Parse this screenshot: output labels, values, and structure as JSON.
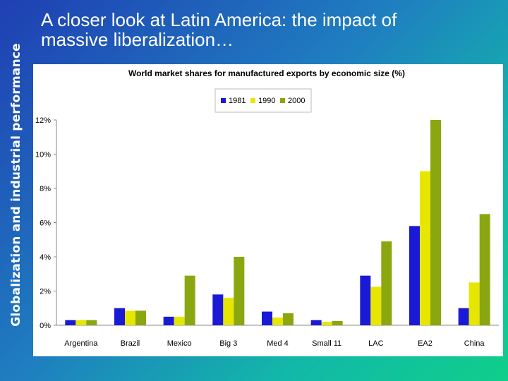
{
  "slide": {
    "side_title": "Globalization and industrial performance",
    "title_line1": "A closer look at Latin America: the impact of",
    "title_line2": "massive liberalization…"
  },
  "chart_data": {
    "type": "bar",
    "title": "World market shares for manufactured exports by economic size (%)",
    "xlabel": "",
    "ylabel": "",
    "categories": [
      "Argentina",
      "Brazil",
      "Mexico",
      "Big 3",
      "Med 4",
      "Small 11",
      "LAC",
      "EA2",
      "China"
    ],
    "series": [
      {
        "name": "1981",
        "color": "#1a1ad6",
        "values": [
          0.3,
          1.0,
          0.5,
          1.8,
          0.8,
          0.3,
          2.9,
          5.8,
          1.0
        ]
      },
      {
        "name": "1990",
        "color": "#e6e600",
        "values": [
          0.3,
          0.85,
          0.5,
          1.6,
          0.45,
          0.2,
          2.25,
          9.0,
          2.5
        ]
      },
      {
        "name": "2000",
        "color": "#8aa70f",
        "values": [
          0.3,
          0.85,
          2.9,
          4.0,
          0.7,
          0.25,
          4.9,
          12.0,
          6.5
        ]
      }
    ],
    "ylim": [
      0,
      12
    ],
    "yticks": [
      "0%",
      "2%",
      "4%",
      "6%",
      "8%",
      "10%",
      "12%"
    ],
    "grid": false,
    "legend_position": "top-center"
  }
}
